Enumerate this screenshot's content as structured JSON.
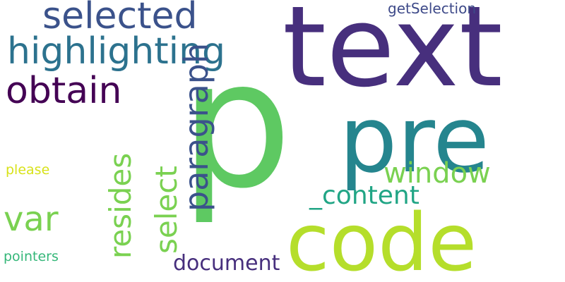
{
  "word_cloud": {
    "words": [
      {
        "id": "p",
        "text": "p",
        "color": "#5ec962",
        "orientation": "horizontal"
      },
      {
        "id": "text",
        "text": "text",
        "color": "#472f7d",
        "orientation": "horizontal"
      },
      {
        "id": "pre",
        "text": "pre",
        "color": "#25858e",
        "orientation": "horizontal"
      },
      {
        "id": "code",
        "text": "code",
        "color": "#b5de2b",
        "orientation": "horizontal"
      },
      {
        "id": "selected",
        "text": "selected",
        "color": "#3b528b",
        "orientation": "horizontal"
      },
      {
        "id": "highlighting",
        "text": "highlighting",
        "color": "#2c728e",
        "orientation": "horizontal"
      },
      {
        "id": "obtain",
        "text": "obtain",
        "color": "#440154",
        "orientation": "horizontal"
      },
      {
        "id": "paragraph",
        "text": "paragraph",
        "color": "#3b528b",
        "orientation": "vertical"
      },
      {
        "id": "select",
        "text": "select",
        "color": "#7ad151",
        "orientation": "vertical"
      },
      {
        "id": "resides",
        "text": "resides",
        "color": "#7ad151",
        "orientation": "vertical"
      },
      {
        "id": "window",
        "text": "window",
        "color": "#7ad151",
        "orientation": "horizontal"
      },
      {
        "id": "content",
        "text": "_content",
        "color": "#21a585",
        "orientation": "horizontal"
      },
      {
        "id": "var",
        "text": "var",
        "color": "#7ad151",
        "orientation": "horizontal"
      },
      {
        "id": "document",
        "text": "document",
        "color": "#472f7d",
        "orientation": "horizontal"
      },
      {
        "id": "getSelection",
        "text": "getSelection",
        "color": "#3e4a89",
        "orientation": "horizontal"
      },
      {
        "id": "please",
        "text": "please",
        "color": "#d8e219",
        "orientation": "horizontal"
      },
      {
        "id": "pointers",
        "text": "pointers",
        "color": "#35b779",
        "orientation": "horizontal"
      }
    ]
  }
}
